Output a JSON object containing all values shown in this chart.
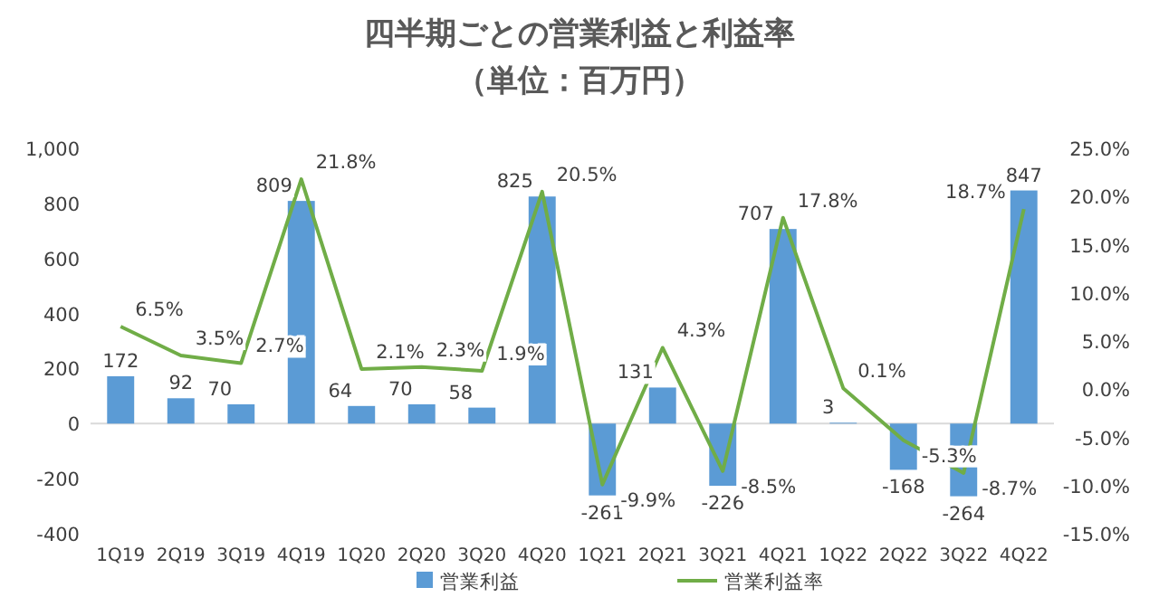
{
  "chart_data": {
    "type": "bar",
    "title": "四半期ごとの営業利益と利益率",
    "subtitle": "（単位：百万円）",
    "categories": [
      "1Q19",
      "2Q19",
      "3Q19",
      "4Q19",
      "1Q20",
      "2Q20",
      "3Q20",
      "4Q20",
      "1Q21",
      "2Q21",
      "3Q21",
      "4Q21",
      "1Q22",
      "2Q22",
      "3Q22",
      "4Q22"
    ],
    "series": [
      {
        "name": "営業利益",
        "color": "#5b9bd5",
        "values": [
          172,
          92,
          70,
          809,
          64,
          70,
          58,
          825,
          -261,
          131,
          -226,
          707,
          3,
          -168,
          -264,
          847
        ],
        "value_labels": [
          "172",
          "92",
          "70",
          "809",
          "64",
          "70",
          "58",
          "825",
          "-261",
          "131",
          "-226",
          "707",
          "3",
          "-168",
          "-264",
          "847"
        ]
      },
      {
        "name": "営業利益率",
        "color": "#70ad47",
        "type": "line",
        "axis": "y2",
        "values": [
          6.5,
          3.5,
          2.7,
          21.8,
          2.1,
          2.3,
          1.9,
          20.5,
          -9.9,
          4.3,
          -8.5,
          17.8,
          0.1,
          -5.3,
          -8.7,
          18.7
        ],
        "value_labels": [
          "6.5%",
          "3.5%",
          "2.7%",
          "21.8%",
          "2.1%",
          "2.3%",
          "1.9%",
          "20.5%",
          "-9.9%",
          "4.3%",
          "-8.5%",
          "17.8%",
          "0.1%",
          "-5.3%",
          "-8.7%",
          "18.7%"
        ]
      }
    ],
    "ylim": [
      -400,
      1000
    ],
    "yticks": [
      -400,
      -200,
      0,
      200,
      400,
      600,
      800,
      {
        "value": 1000,
        "label": "1,000"
      }
    ],
    "y2lim": [
      -15,
      25
    ],
    "y2ticks": [
      {
        "value": -15,
        "label": "-15.0%"
      },
      {
        "value": -10,
        "label": "-10.0%"
      },
      {
        "value": -5,
        "label": "-5.0%"
      },
      {
        "value": 0,
        "label": "0.0%"
      },
      {
        "value": 5,
        "label": "5.0%"
      },
      {
        "value": 10,
        "label": "10.0%"
      },
      {
        "value": 15,
        "label": "15.0%"
      },
      {
        "value": 20,
        "label": "20.0%"
      },
      {
        "value": 25,
        "label": "25.0%"
      }
    ],
    "legend": "bottom",
    "marker": "none"
  }
}
